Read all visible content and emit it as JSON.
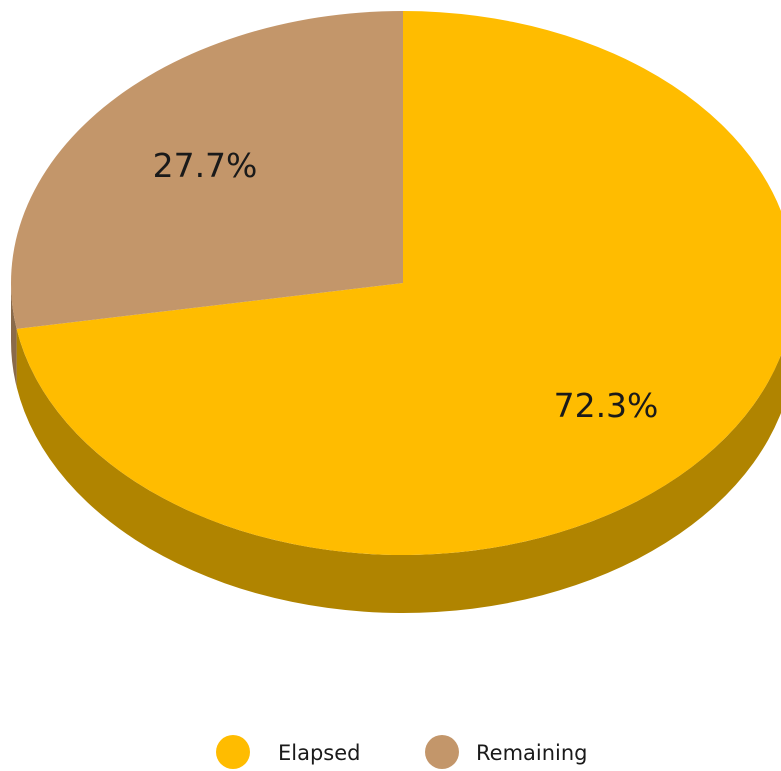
{
  "chart_data": {
    "type": "pie",
    "style": "3d",
    "series": [
      {
        "name": "Elapsed",
        "value": 72.3,
        "label": "72.3%",
        "color": "#ffbc00",
        "side_color": "#b08400"
      },
      {
        "name": "Remaining",
        "value": 27.7,
        "label": "27.7%",
        "color": "#c3966a",
        "side_color": "#8a6a4a"
      }
    ],
    "legend": {
      "placement": "bottom",
      "items": [
        "Elapsed",
        "Remaining"
      ]
    }
  }
}
